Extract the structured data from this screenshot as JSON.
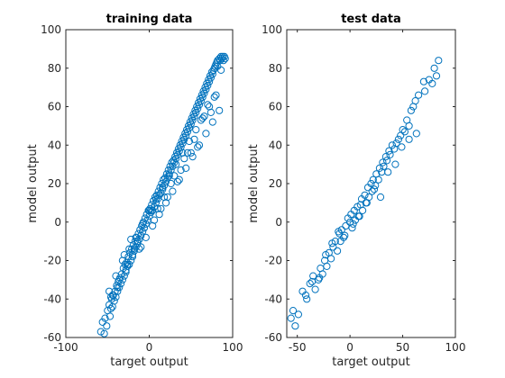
{
  "chart_data": [
    {
      "type": "scatter",
      "title": "training data",
      "xlabel": "target output",
      "ylabel": "model output",
      "xlim": [
        -100,
        100
      ],
      "ylim": [
        -60,
        100
      ],
      "xticks": [
        -100,
        0,
        100
      ],
      "yticks": [
        -60,
        -40,
        -20,
        0,
        20,
        40,
        60,
        80,
        100
      ],
      "grid": false,
      "marker": "circle-open",
      "color": "#0072bd",
      "series": [
        {
          "x": [
            -58,
            -56,
            -54,
            -53,
            -51,
            -50,
            -48,
            -47,
            -46,
            -45,
            -44,
            -43,
            -42,
            -41,
            -40,
            -39,
            -38,
            -37,
            -36,
            -35,
            -34,
            -33,
            -32,
            -31,
            -30,
            -29,
            -28,
            -27,
            -26,
            -25,
            -24,
            -23,
            -22,
            -21,
            -20,
            -19,
            -18,
            -17,
            -16,
            -15,
            -14,
            -13,
            -12,
            -11,
            -10,
            -9,
            -8,
            -7,
            -6,
            -5,
            -4,
            -3,
            -2,
            -1,
            0,
            1,
            2,
            3,
            4,
            5,
            6,
            7,
            8,
            9,
            10,
            11,
            12,
            13,
            14,
            15,
            16,
            17,
            18,
            19,
            20,
            21,
            22,
            23,
            24,
            25,
            26,
            27,
            28,
            29,
            30,
            31,
            32,
            33,
            34,
            35,
            36,
            37,
            38,
            39,
            40,
            41,
            42,
            43,
            44,
            45,
            46,
            47,
            48,
            49,
            50,
            51,
            52,
            53,
            54,
            55,
            56,
            57,
            58,
            59,
            60,
            61,
            62,
            63,
            64,
            65,
            66,
            67,
            68,
            69,
            70,
            71,
            72,
            73,
            74,
            75,
            76,
            77,
            78,
            79,
            80,
            81,
            82,
            84,
            85,
            86,
            87,
            88,
            89,
            90,
            91,
            -48,
            -44,
            -40,
            -36,
            -32,
            -28,
            -24,
            -20,
            -16,
            -12,
            -8,
            -4,
            0,
            4,
            8,
            12,
            16,
            20,
            24,
            28,
            32,
            36,
            40,
            44,
            48,
            52,
            56,
            60,
            64,
            68,
            72,
            76,
            80,
            84,
            -30,
            -22,
            -14,
            -6,
            2,
            10,
            18,
            26,
            34,
            42,
            50,
            58,
            66,
            74,
            82,
            -46,
            -38,
            -26,
            -18,
            -10,
            6,
            14,
            22,
            30,
            38,
            46,
            54,
            62,
            70,
            78,
            86
          ],
          "y": [
            -57,
            -52,
            -58,
            -50,
            -54,
            -46,
            -43,
            -49,
            -45,
            -40,
            -44,
            -38,
            -41,
            -36,
            -39,
            -33,
            -36,
            -31,
            -34,
            -29,
            -32,
            -27,
            -30,
            -24,
            -28,
            -22,
            -26,
            -21,
            -23,
            -18,
            -22,
            -16,
            -20,
            -14,
            -17,
            -12,
            -15,
            -10,
            -13,
            -8,
            -11,
            -6,
            -9,
            -4,
            -7,
            -2,
            -5,
            0,
            -3,
            2,
            -1,
            4,
            1,
            6,
            3,
            7,
            5,
            9,
            6,
            11,
            8,
            13,
            10,
            14,
            12,
            16,
            14,
            18,
            15,
            20,
            17,
            22,
            19,
            23,
            21,
            25,
            23,
            27,
            25,
            29,
            27,
            31,
            29,
            32,
            31,
            34,
            33,
            36,
            35,
            38,
            37,
            40,
            39,
            42,
            41,
            44,
            43,
            46,
            45,
            48,
            47,
            50,
            49,
            52,
            51,
            54,
            53,
            56,
            55,
            58,
            57,
            60,
            59,
            62,
            61,
            64,
            63,
            66,
            65,
            68,
            67,
            70,
            69,
            72,
            71,
            74,
            73,
            76,
            75,
            78,
            77,
            79,
            80,
            81,
            82,
            83,
            84,
            85,
            84,
            86,
            85,
            86,
            84,
            86,
            85,
            -36,
            -38,
            -28,
            -30,
            -20,
            -25,
            -14,
            -18,
            -8,
            -14,
            -1,
            -8,
            6,
            -2,
            12,
            4,
            18,
            10,
            24,
            16,
            30,
            22,
            36,
            28,
            42,
            34,
            48,
            40,
            54,
            46,
            60,
            52,
            66,
            58,
            -17,
            -9,
            -10,
            -3,
            6,
            7,
            13,
            20,
            21,
            33,
            36,
            39,
            55,
            57,
            81,
            -39,
            -34,
            -22,
            -14,
            -13,
            1,
            7,
            13,
            24,
            27,
            36,
            43,
            53,
            61,
            65,
            79
          ]
        }
      ]
    },
    {
      "type": "scatter",
      "title": "test data",
      "xlabel": "target output",
      "ylabel": "model output",
      "xlim": [
        -60,
        100
      ],
      "ylim": [
        -60,
        100
      ],
      "xticks": [
        -50,
        0,
        50,
        100
      ],
      "yticks": [
        -60,
        -40,
        -20,
        0,
        20,
        40,
        60,
        80,
        100
      ],
      "grid": false,
      "marker": "circle-open",
      "color": "#0072bd",
      "series": [
        {
          "x": [
            -56,
            -54,
            -52,
            -49,
            -45,
            -41,
            -38,
            -35,
            -33,
            -30,
            -28,
            -26,
            -24,
            -22,
            -20,
            -18,
            -16,
            -14,
            -12,
            -10,
            -9,
            -8,
            -6,
            -4,
            -2,
            0,
            1,
            2,
            4,
            5,
            7,
            8,
            10,
            11,
            12,
            14,
            15,
            17,
            18,
            20,
            21,
            22,
            24,
            25,
            27,
            28,
            30,
            31,
            32,
            34,
            35,
            37,
            38,
            40,
            42,
            44,
            46,
            48,
            50,
            52,
            54,
            56,
            58,
            60,
            62,
            65,
            70,
            75,
            78,
            80,
            82,
            84,
            -42,
            -36,
            -29,
            -23,
            -17,
            -11,
            -5,
            3,
            9,
            16,
            23,
            29,
            36,
            43,
            49,
            56,
            63,
            71
          ],
          "y": [
            -50,
            -46,
            -54,
            -48,
            -36,
            -40,
            -32,
            -28,
            -35,
            -30,
            -24,
            -27,
            -20,
            -23,
            -16,
            -19,
            -13,
            -10,
            -15,
            -6,
            -10,
            -4,
            -8,
            -2,
            2,
            0,
            4,
            -3,
            6,
            1,
            8,
            3,
            9,
            12,
            6,
            14,
            10,
            18,
            13,
            20,
            16,
            22,
            19,
            25,
            22,
            28,
            26,
            31,
            29,
            34,
            32,
            37,
            35,
            40,
            38,
            41,
            43,
            45,
            48,
            47,
            53,
            50,
            58,
            60,
            63,
            66,
            73,
            74,
            72,
            80,
            76,
            84,
            -38,
            -31,
            -29,
            -17,
            -11,
            -5,
            -7,
            -1,
            3,
            10,
            17,
            13,
            26,
            30,
            39,
            43,
            46,
            68
          ]
        }
      ]
    }
  ]
}
